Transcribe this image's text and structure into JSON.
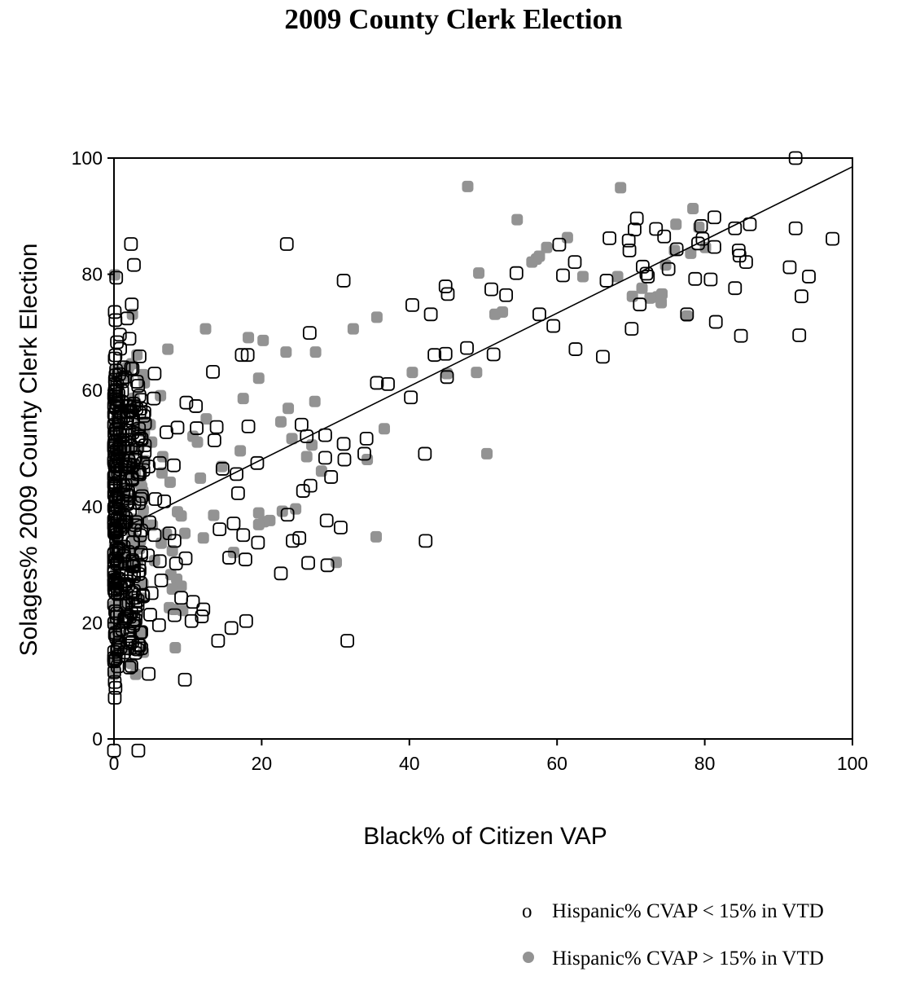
{
  "chart_data": {
    "type": "scatter",
    "title": "2009 County Clerk Election",
    "xlabel": "Black% of Citizen VAP",
    "ylabel": "Solages% 2009 County Clerk Election",
    "xlim": [
      0,
      100
    ],
    "ylim": [
      0,
      100
    ],
    "xticks": [
      "0",
      "20",
      "40",
      "60",
      "80",
      "100"
    ],
    "yticks": [
      "0",
      "20",
      "40",
      "60",
      "80",
      "100"
    ],
    "grid": false,
    "legend_position": "bottom-right",
    "fit_line": {
      "x": [
        0,
        100
      ],
      "y": [
        35.5,
        98.5
      ]
    },
    "series": [
      {
        "name": "Hispanic% CVAP < 15% in VTD",
        "legend_glyph": "o",
        "marker": "hollow-square",
        "color": "#000000",
        "points": [
          [
            92.3,
            100
          ],
          [
            2.3,
            85.2
          ],
          [
            23.4,
            85.2
          ],
          [
            2.7,
            81.6
          ],
          [
            0.3,
            79.4
          ],
          [
            31.1,
            78.9
          ],
          [
            0.1,
            73.5
          ],
          [
            0.2,
            72.1
          ],
          [
            1.8,
            72.4
          ],
          [
            2.4,
            74.8
          ],
          [
            0.8,
            69.6
          ],
          [
            0.4,
            68.3
          ],
          [
            2.1,
            68.9
          ],
          [
            0.1,
            65.5
          ],
          [
            0.7,
            62.8
          ],
          [
            1.5,
            62.3
          ],
          [
            2.3,
            63.8
          ],
          [
            3.1,
            61.5
          ],
          [
            5.5,
            62.9
          ],
          [
            0.2,
            58.5
          ],
          [
            0.9,
            56.2
          ],
          [
            1.8,
            57.4
          ],
          [
            2.6,
            55.1
          ],
          [
            5.4,
            58.6
          ],
          [
            9.8,
            57.9
          ],
          [
            11.1,
            57.3
          ],
          [
            0.3,
            53.4
          ],
          [
            1.2,
            52.8
          ],
          [
            2.0,
            51.5
          ],
          [
            3.1,
            50.1
          ],
          [
            4.2,
            54.3
          ],
          [
            7.1,
            52.8
          ],
          [
            8.6,
            53.6
          ],
          [
            0.5,
            48.7
          ],
          [
            1.6,
            47.3
          ],
          [
            2.8,
            48.1
          ],
          [
            3.5,
            45.9
          ],
          [
            4.7,
            46.9
          ],
          [
            6.2,
            47.5
          ],
          [
            8.1,
            47.1
          ],
          [
            0.2,
            43.5
          ],
          [
            1.3,
            42.9
          ],
          [
            2.4,
            44.6
          ],
          [
            3.8,
            41.8
          ],
          [
            5.6,
            41.3
          ],
          [
            6.8,
            40.9
          ],
          [
            0.8,
            38.6
          ],
          [
            1.7,
            37.4
          ],
          [
            2.9,
            36.8
          ],
          [
            3.7,
            35.9
          ],
          [
            4.8,
            37.3
          ],
          [
            5.5,
            35.1
          ],
          [
            7.5,
            35.4
          ],
          [
            8.2,
            34.1
          ],
          [
            0.3,
            32.1
          ],
          [
            1.4,
            31.5
          ],
          [
            2.5,
            30.8
          ],
          [
            3.4,
            29.9
          ],
          [
            4.6,
            31.6
          ],
          [
            6.2,
            30.6
          ],
          [
            8.4,
            30.2
          ],
          [
            9.7,
            31.1
          ],
          [
            0.6,
            27.6
          ],
          [
            1.9,
            26.4
          ],
          [
            2.7,
            25.5
          ],
          [
            3.9,
            24.8
          ],
          [
            5.1,
            25.1
          ],
          [
            6.4,
            27.3
          ],
          [
            9.1,
            24.3
          ],
          [
            10.7,
            23.6
          ],
          [
            0.4,
            21.6
          ],
          [
            1.5,
            20.4
          ],
          [
            2.6,
            19.5
          ],
          [
            3.7,
            18.4
          ],
          [
            4.9,
            21.4
          ],
          [
            6.1,
            19.6
          ],
          [
            8.2,
            21.3
          ],
          [
            10.5,
            20.3
          ],
          [
            0.7,
            16.6
          ],
          [
            1.8,
            15.6
          ],
          [
            2.9,
            14.8
          ],
          [
            3.3,
            16.2
          ],
          [
            0.5,
            12.5
          ],
          [
            2.1,
            12.3
          ],
          [
            4.7,
            11.2
          ],
          [
            9.6,
            10.2
          ],
          [
            0.1,
            9.8
          ],
          [
            0.2,
            8.8
          ],
          [
            0.1,
            7.1
          ],
          [
            0.0,
            -2.0
          ],
          [
            3.3,
            -2.0
          ],
          [
            13.4,
            63.2
          ],
          [
            17.3,
            66.1
          ],
          [
            18.1,
            66.1
          ],
          [
            11.2,
            53.5
          ],
          [
            13.6,
            51.4
          ],
          [
            13.9,
            53.7
          ],
          [
            18.2,
            53.8
          ],
          [
            16.2,
            37.1
          ],
          [
            17.5,
            35.1
          ],
          [
            19.5,
            33.8
          ],
          [
            14.3,
            36.1
          ],
          [
            15.6,
            31.2
          ],
          [
            17.8,
            30.9
          ],
          [
            12.1,
            22.3
          ],
          [
            14.1,
            16.9
          ],
          [
            15.9,
            19.1
          ],
          [
            17.9,
            20.3
          ],
          [
            11.9,
            21.1
          ],
          [
            16.8,
            42.3
          ],
          [
            19.4,
            47.5
          ],
          [
            16.6,
            45.6
          ],
          [
            14.7,
            46.5
          ],
          [
            23.5,
            38.6
          ],
          [
            24.2,
            34.1
          ],
          [
            25.1,
            34.6
          ],
          [
            26.3,
            30.3
          ],
          [
            28.9,
            29.9
          ],
          [
            22.6,
            28.5
          ],
          [
            25.6,
            42.7
          ],
          [
            26.6,
            43.6
          ],
          [
            28.6,
            48.4
          ],
          [
            29.4,
            45.1
          ],
          [
            28.8,
            37.6
          ],
          [
            30.7,
            36.4
          ],
          [
            25.4,
            54.1
          ],
          [
            26.1,
            52.1
          ],
          [
            28.6,
            52.3
          ],
          [
            31.2,
            48.1
          ],
          [
            31.1,
            50.8
          ],
          [
            34.2,
            51.7
          ],
          [
            33.9,
            49.1
          ],
          [
            26.5,
            69.9
          ],
          [
            31.6,
            16.9
          ],
          [
            35.6,
            61.3
          ],
          [
            37.1,
            61.1
          ],
          [
            40.2,
            58.8
          ],
          [
            42.1,
            49.1
          ],
          [
            42.2,
            34.1
          ],
          [
            42.9,
            73.1
          ],
          [
            43.4,
            66.1
          ],
          [
            40.4,
            74.7
          ],
          [
            44.9,
            77.9
          ],
          [
            45.2,
            76.6
          ],
          [
            45.1,
            62.3
          ],
          [
            44.9,
            66.3
          ],
          [
            47.8,
            67.3
          ],
          [
            51.1,
            77.4
          ],
          [
            51.4,
            66.2
          ],
          [
            53.1,
            76.4
          ],
          [
            54.5,
            80.2
          ],
          [
            57.6,
            73.1
          ],
          [
            59.5,
            71.1
          ],
          [
            60.3,
            85.1
          ],
          [
            60.8,
            79.8
          ],
          [
            62.4,
            82.1
          ],
          [
            62.5,
            67.1
          ],
          [
            66.2,
            65.8
          ],
          [
            67.1,
            86.2
          ],
          [
            66.7,
            78.9
          ],
          [
            69.7,
            85.8
          ],
          [
            70.5,
            87.7
          ],
          [
            70.8,
            89.6
          ],
          [
            69.8,
            84.1
          ],
          [
            70.1,
            70.6
          ],
          [
            71.2,
            74.8
          ],
          [
            71.6,
            81.3
          ],
          [
            72.3,
            79.6
          ],
          [
            72.1,
            80.1
          ],
          [
            73.4,
            87.8
          ],
          [
            74.5,
            86.5
          ],
          [
            75.1,
            80.9
          ],
          [
            76.2,
            84.3
          ],
          [
            77.6,
            73.1
          ],
          [
            78.7,
            79.2
          ],
          [
            79.1,
            85.3
          ],
          [
            79.7,
            86.1
          ],
          [
            79.5,
            88.3
          ],
          [
            80.8,
            79.1
          ],
          [
            81.3,
            89.8
          ],
          [
            81.3,
            84.7
          ],
          [
            81.5,
            71.8
          ],
          [
            84.1,
            87.9
          ],
          [
            84.6,
            84.1
          ],
          [
            84.7,
            83.2
          ],
          [
            85.6,
            82.1
          ],
          [
            86.1,
            88.6
          ],
          [
            84.1,
            77.6
          ],
          [
            84.9,
            69.4
          ],
          [
            91.5,
            81.2
          ],
          [
            92.3,
            87.9
          ],
          [
            92.8,
            69.5
          ],
          [
            93.1,
            76.2
          ],
          [
            94.1,
            79.6
          ],
          [
            97.3,
            86.1
          ]
        ]
      },
      {
        "name": "Hispanic% CVAP > 15% in VTD",
        "legend_glyph": "●",
        "marker": "filled-square",
        "color": "#939393",
        "points": [
          [
            0.1,
            79.9
          ],
          [
            2.5,
            73.1
          ],
          [
            7.3,
            67.1
          ],
          [
            3.1,
            66.1
          ],
          [
            1.6,
            63.8
          ],
          [
            2.9,
            57.8
          ],
          [
            6.3,
            59.1
          ],
          [
            4.9,
            54.1
          ],
          [
            5.1,
            51.1
          ],
          [
            6.6,
            48.6
          ],
          [
            4.2,
            47.9
          ],
          [
            6.5,
            45.8
          ],
          [
            7.6,
            44.2
          ],
          [
            3.9,
            42.6
          ],
          [
            8.6,
            39.1
          ],
          [
            9.1,
            38.4
          ],
          [
            5.2,
            36.8
          ],
          [
            7.1,
            35.3
          ],
          [
            9.6,
            35.4
          ],
          [
            6.4,
            33.7
          ],
          [
            7.9,
            32.4
          ],
          [
            5.5,
            30.7
          ],
          [
            7.7,
            28.3
          ],
          [
            8.5,
            27.5
          ],
          [
            9.1,
            26.3
          ],
          [
            7.9,
            25.8
          ],
          [
            8.1,
            22.3
          ],
          [
            9.3,
            22.1
          ],
          [
            7.5,
            22.6
          ],
          [
            8.3,
            15.7
          ],
          [
            10.7,
            52.1
          ],
          [
            11.3,
            51.1
          ],
          [
            12.5,
            55.1
          ],
          [
            11.7,
            44.9
          ],
          [
            12.1,
            34.6
          ],
          [
            13.5,
            38.5
          ],
          [
            14.6,
            46.9
          ],
          [
            16.2,
            32.1
          ],
          [
            17.5,
            58.6
          ],
          [
            17.1,
            49.6
          ],
          [
            18.2,
            69.1
          ],
          [
            19.6,
            62.1
          ],
          [
            20.2,
            68.6
          ],
          [
            22.6,
            54.6
          ],
          [
            23.3,
            66.6
          ],
          [
            23.6,
            56.9
          ],
          [
            24.1,
            51.7
          ],
          [
            24.6,
            39.6
          ],
          [
            22.8,
            39.2
          ],
          [
            21.1,
            37.6
          ],
          [
            20.3,
            37.4
          ],
          [
            19.6,
            36.9
          ],
          [
            19.6,
            38.9
          ],
          [
            26.1,
            48.6
          ],
          [
            26.8,
            50.6
          ],
          [
            27.3,
            66.6
          ],
          [
            27.2,
            58.1
          ],
          [
            28.1,
            46.1
          ],
          [
            30.1,
            30.4
          ],
          [
            32.4,
            70.6
          ],
          [
            35.6,
            72.6
          ],
          [
            34.3,
            48.1
          ],
          [
            36.6,
            53.4
          ],
          [
            35.5,
            34.8
          ],
          [
            40.4,
            63.1
          ],
          [
            45.1,
            62.9
          ],
          [
            47.9,
            95.1
          ],
          [
            49.1,
            63.1
          ],
          [
            49.4,
            80.2
          ],
          [
            50.5,
            49.1
          ],
          [
            51.6,
            73.1
          ],
          [
            52.6,
            73.5
          ],
          [
            54.6,
            89.4
          ],
          [
            56.6,
            82.1
          ],
          [
            57.2,
            82.6
          ],
          [
            57.6,
            83.1
          ],
          [
            58.6,
            84.6
          ],
          [
            61.4,
            86.3
          ],
          [
            63.5,
            79.6
          ],
          [
            68.6,
            94.9
          ],
          [
            68.2,
            79.6
          ],
          [
            70.2,
            76.2
          ],
          [
            71.5,
            77.6
          ],
          [
            72.6,
            75.9
          ],
          [
            73.6,
            76.1
          ],
          [
            74.1,
            75.1
          ],
          [
            74.2,
            76.6
          ],
          [
            74.7,
            81.6
          ],
          [
            75.9,
            84.1
          ],
          [
            76.1,
            88.6
          ],
          [
            77.6,
            72.8
          ],
          [
            78.4,
            91.3
          ],
          [
            79.2,
            88.1
          ],
          [
            80.1,
            84.6
          ],
          [
            78.1,
            83.6
          ],
          [
            12.4,
            70.6
          ]
        ]
      }
    ]
  }
}
